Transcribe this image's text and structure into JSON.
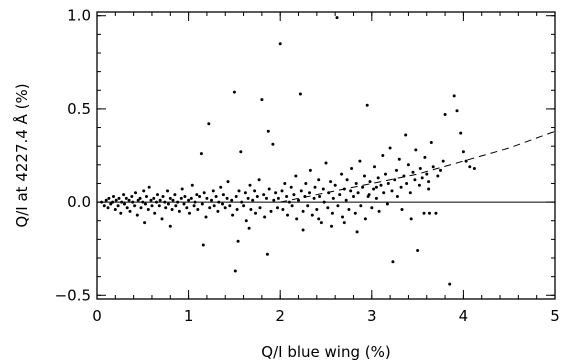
{
  "chart_data": {
    "type": "scatter",
    "xlabel": "Q/I blue wing (%)",
    "ylabel": "Q/I at 4227.4 Å (%)",
    "xlim": [
      0,
      5
    ],
    "ylim": [
      -0.52,
      1.02
    ],
    "x_ticks": [
      0,
      1,
      2,
      3,
      4,
      5
    ],
    "x_tick_labels": [
      "0",
      "1",
      "2",
      "3",
      "4",
      "5"
    ],
    "y_ticks": [
      -0.5,
      0.0,
      0.5,
      1.0
    ],
    "y_tick_labels": [
      "−0.5",
      "0.0",
      "0.5",
      "1.0"
    ],
    "x_minor_step": 0.2,
    "y_minor_step": 0.1,
    "reference_line": {
      "y": 0.0,
      "style": "solid"
    },
    "fit_curve": {
      "style": "dashed",
      "x": [
        2.0,
        2.5,
        3.0,
        3.5,
        4.0,
        4.5,
        5.0
      ],
      "y": [
        0.0,
        0.05,
        0.1,
        0.15,
        0.22,
        0.29,
        0.38
      ]
    },
    "grid": false,
    "legend": "none",
    "points": [
      [
        0.05,
        0.0
      ],
      [
        0.08,
        -0.02
      ],
      [
        0.1,
        0.01
      ],
      [
        0.12,
        -0.03
      ],
      [
        0.13,
        0.02
      ],
      [
        0.15,
        -0.01
      ],
      [
        0.17,
        0.0
      ],
      [
        0.18,
        0.03
      ],
      [
        0.2,
        -0.04
      ],
      [
        0.21,
        0.01
      ],
      [
        0.23,
        -0.02
      ],
      [
        0.24,
        0.02
      ],
      [
        0.26,
        -0.06
      ],
      [
        0.27,
        0.0
      ],
      [
        0.29,
        0.04
      ],
      [
        0.3,
        -0.01
      ],
      [
        0.32,
        0.02
      ],
      [
        0.33,
        -0.03
      ],
      [
        0.35,
        0.01
      ],
      [
        0.36,
        -0.05
      ],
      [
        0.38,
        0.03
      ],
      [
        0.39,
        0.0
      ],
      [
        0.41,
        -0.02
      ],
      [
        0.42,
        0.05
      ],
      [
        0.44,
        -0.07
      ],
      [
        0.45,
        0.01
      ],
      [
        0.47,
        0.02
      ],
      [
        0.48,
        -0.03
      ],
      [
        0.5,
        0.0
      ],
      [
        0.51,
        0.06
      ],
      [
        0.53,
        -0.01
      ],
      [
        0.54,
        0.03
      ],
      [
        0.56,
        -0.04
      ],
      [
        0.57,
        0.08
      ],
      [
        0.59,
        0.01
      ],
      [
        0.6,
        -0.02
      ],
      [
        0.62,
        0.02
      ],
      [
        0.63,
        -0.06
      ],
      [
        0.65,
        0.0
      ],
      [
        0.66,
        0.04
      ],
      [
        0.68,
        -0.02
      ],
      [
        0.69,
        0.01
      ],
      [
        0.71,
        -0.09
      ],
      [
        0.72,
        0.03
      ],
      [
        0.74,
        0.0
      ],
      [
        0.75,
        -0.03
      ],
      [
        0.77,
        0.06
      ],
      [
        0.78,
        -0.01
      ],
      [
        0.8,
        0.02
      ],
      [
        0.82,
        -0.04
      ],
      [
        0.83,
        0.01
      ],
      [
        0.85,
        0.04
      ],
      [
        0.86,
        -0.02
      ],
      [
        0.88,
        0.0
      ],
      [
        0.9,
        -0.05
      ],
      [
        0.92,
        0.02
      ],
      [
        0.93,
        0.07
      ],
      [
        0.95,
        -0.01
      ],
      [
        0.96,
        0.03
      ],
      [
        0.98,
        -0.03
      ],
      [
        1.0,
        0.01
      ],
      [
        1.01,
        -0.06
      ],
      [
        1.03,
        0.02
      ],
      [
        1.04,
        0.09
      ],
      [
        1.06,
        -0.02
      ],
      [
        1.07,
        0.0
      ],
      [
        1.09,
        0.04
      ],
      [
        1.1,
        -0.04
      ],
      [
        1.12,
        0.03
      ],
      [
        1.14,
        0.26
      ],
      [
        1.15,
        -0.01
      ],
      [
        1.17,
        0.05
      ],
      [
        1.19,
        -0.08
      ],
      [
        1.2,
        0.02
      ],
      [
        1.22,
        0.42
      ],
      [
        1.23,
        -0.03
      ],
      [
        1.25,
        0.01
      ],
      [
        1.27,
        0.06
      ],
      [
        1.28,
        -0.02
      ],
      [
        1.3,
        0.03
      ],
      [
        1.32,
        -0.05
      ],
      [
        1.33,
        0.0
      ],
      [
        1.35,
        0.08
      ],
      [
        1.37,
        -0.01
      ],
      [
        1.38,
        0.04
      ],
      [
        1.4,
        -0.03
      ],
      [
        1.42,
        0.02
      ],
      [
        1.43,
        0.11
      ],
      [
        1.45,
        -0.02
      ],
      [
        1.47,
        0.01
      ],
      [
        1.48,
        -0.07
      ],
      [
        1.5,
        0.59
      ],
      [
        1.52,
        0.03
      ],
      [
        1.53,
        -0.04
      ],
      [
        1.55,
        0.06
      ],
      [
        1.57,
        0.27
      ],
      [
        1.58,
        0.0
      ],
      [
        1.6,
        -0.02
      ],
      [
        1.62,
        0.05
      ],
      [
        1.63,
        -0.1
      ],
      [
        1.65,
        0.02
      ],
      [
        1.67,
        0.09
      ],
      [
        1.68,
        -0.04
      ],
      [
        1.7,
        0.01
      ],
      [
        1.72,
        0.06
      ],
      [
        1.73,
        -0.06
      ],
      [
        1.75,
        0.03
      ],
      [
        1.77,
        0.12
      ],
      [
        1.78,
        -0.03
      ],
      [
        1.8,
        0.55
      ],
      [
        1.82,
        0.04
      ],
      [
        1.83,
        -0.08
      ],
      [
        1.85,
        0.02
      ],
      [
        1.87,
        0.38
      ],
      [
        1.88,
        0.07
      ],
      [
        1.9,
        -0.05
      ],
      [
        1.92,
        0.31
      ],
      [
        1.93,
        0.01
      ],
      [
        1.95,
        0.05
      ],
      [
        1.97,
        -0.03
      ],
      [
        1.98,
        0.02
      ],
      [
        2.0,
        0.85
      ],
      [
        2.02,
        0.06
      ],
      [
        2.03,
        -0.04
      ],
      [
        2.05,
        0.1
      ],
      [
        2.07,
        0.03
      ],
      [
        2.08,
        -0.07
      ],
      [
        2.1,
        0.0
      ],
      [
        2.12,
        0.08
      ],
      [
        2.13,
        -0.02
      ],
      [
        2.15,
        0.04
      ],
      [
        2.17,
        0.14
      ],
      [
        2.18,
        -0.09
      ],
      [
        2.2,
        0.01
      ],
      [
        2.22,
        0.58
      ],
      [
        2.23,
        0.06
      ],
      [
        2.25,
        -0.05
      ],
      [
        2.27,
        0.03
      ],
      [
        2.28,
        0.1
      ],
      [
        2.3,
        -0.02
      ],
      [
        2.32,
        0.05
      ],
      [
        2.33,
        0.17
      ],
      [
        2.35,
        -0.07
      ],
      [
        2.37,
        0.02
      ],
      [
        2.38,
        0.08
      ],
      [
        2.4,
        -0.04
      ],
      [
        2.42,
        0.12
      ],
      [
        2.43,
        0.03
      ],
      [
        2.45,
        -0.11
      ],
      [
        2.47,
        0.07
      ],
      [
        2.48,
        0.0
      ],
      [
        2.5,
        0.21
      ],
      [
        2.52,
        -0.03
      ],
      [
        2.53,
        0.05
      ],
      [
        2.55,
        0.11
      ],
      [
        2.57,
        -0.06
      ],
      [
        2.58,
        0.02
      ],
      [
        2.6,
        0.09
      ],
      [
        2.62,
        0.99
      ],
      [
        2.63,
        -0.02
      ],
      [
        2.65,
        0.04
      ],
      [
        2.67,
        0.15
      ],
      [
        2.68,
        -0.08
      ],
      [
        2.7,
        0.07
      ],
      [
        2.72,
        0.01
      ],
      [
        2.73,
        0.12
      ],
      [
        2.75,
        -0.04
      ],
      [
        2.77,
        0.06
      ],
      [
        2.78,
        0.18
      ],
      [
        2.8,
        0.03
      ],
      [
        2.82,
        -0.06
      ],
      [
        2.83,
        0.1
      ],
      [
        2.85,
        0.05
      ],
      [
        2.87,
        0.22
      ],
      [
        2.88,
        -0.02
      ],
      [
        2.9,
        0.08
      ],
      [
        2.92,
        0.14
      ],
      [
        2.93,
        -0.09
      ],
      [
        2.95,
        0.52
      ],
      [
        2.97,
        0.04
      ],
      [
        2.98,
        0.11
      ],
      [
        3.0,
        -0.03
      ],
      [
        3.02,
        0.07
      ],
      [
        3.03,
        0.19
      ],
      [
        3.05,
        0.02
      ],
      [
        3.07,
        0.13
      ],
      [
        3.08,
        -0.05
      ],
      [
        3.1,
        0.09
      ],
      [
        3.12,
        0.25
      ],
      [
        3.13,
        0.05
      ],
      [
        3.15,
        0.15
      ],
      [
        3.17,
        -0.01
      ],
      [
        3.18,
        0.1
      ],
      [
        3.2,
        0.29
      ],
      [
        3.22,
        0.06
      ],
      [
        3.23,
        -0.32
      ],
      [
        3.25,
        0.12
      ],
      [
        3.27,
        0.17
      ],
      [
        3.28,
        0.03
      ],
      [
        3.3,
        0.23
      ],
      [
        3.32,
        0.08
      ],
      [
        3.33,
        -0.04
      ],
      [
        3.35,
        0.14
      ],
      [
        3.37,
        0.36
      ],
      [
        3.38,
        0.1
      ],
      [
        3.4,
        0.2
      ],
      [
        3.42,
        0.05
      ],
      [
        3.43,
        -0.09
      ],
      [
        3.45,
        0.16
      ],
      [
        3.47,
        0.12
      ],
      [
        3.48,
        0.28
      ],
      [
        3.5,
        -0.26
      ],
      [
        3.52,
        0.09
      ],
      [
        3.53,
        0.18
      ],
      [
        3.55,
        0.13
      ],
      [
        3.57,
        -0.06
      ],
      [
        3.58,
        0.24
      ],
      [
        3.6,
        0.15
      ],
      [
        3.62,
        0.07
      ],
      [
        3.63,
        -0.06
      ],
      [
        3.65,
        0.32
      ],
      [
        3.67,
        0.19
      ],
      [
        3.7,
        -0.06
      ],
      [
        3.75,
        0.17
      ],
      [
        3.8,
        0.47
      ],
      [
        3.85,
        -0.44
      ],
      [
        3.9,
        0.57
      ],
      [
        3.93,
        0.49
      ],
      [
        3.97,
        0.37
      ],
      [
        4.0,
        0.27
      ],
      [
        4.03,
        0.22
      ],
      [
        4.07,
        0.19
      ],
      [
        4.12,
        0.18
      ],
      [
        3.78,
        0.22
      ],
      [
        3.72,
        0.14
      ],
      [
        3.62,
        0.11
      ],
      [
        3.05,
        0.08
      ],
      [
        2.96,
        0.03
      ],
      [
        1.51,
        -0.37
      ],
      [
        1.16,
        -0.23
      ],
      [
        1.54,
        -0.21
      ],
      [
        1.86,
        -0.28
      ],
      [
        2.25,
        -0.15
      ],
      [
        2.42,
        -0.09
      ],
      [
        2.56,
        -0.13
      ],
      [
        2.84,
        -0.16
      ],
      [
        2.7,
        -0.11
      ],
      [
        1.66,
        -0.14
      ],
      [
        0.8,
        -0.13
      ],
      [
        0.52,
        -0.11
      ]
    ]
  }
}
